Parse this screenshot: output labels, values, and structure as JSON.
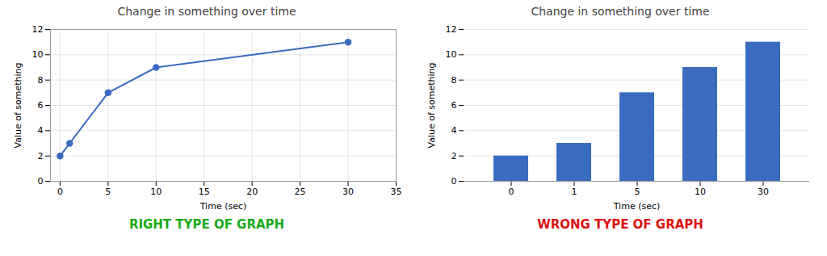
{
  "chart_data": [
    {
      "type": "line",
      "title": "Change in something over time",
      "xlabel": "Time (sec)",
      "ylabel": "Value of something",
      "x": [
        0,
        1,
        5,
        10,
        30
      ],
      "values": [
        2,
        3,
        7,
        9,
        11
      ],
      "color": "#3a6bbf",
      "marker": "circle",
      "xlim": [
        -1,
        35
      ],
      "xticks": [
        0,
        5,
        10,
        15,
        20,
        25,
        30,
        35
      ],
      "ylim": [
        0,
        12
      ],
      "yticks": [
        0,
        2,
        4,
        6,
        8,
        10,
        12
      ],
      "grid": true,
      "annotations": [
        {
          "text": "RIGHT TYPE OF GRAPH",
          "color": "#1aaa1a"
        }
      ]
    },
    {
      "type": "bar",
      "title": "Change in something over time",
      "xlabel": "Time (sec)",
      "ylabel": "Value of something",
      "categories": [
        "0",
        "1",
        "5",
        "10",
        "30"
      ],
      "values": [
        2,
        3,
        7,
        9,
        11
      ],
      "color": "#3a6bbf",
      "ylim": [
        0,
        12
      ],
      "yticks": [
        0,
        2,
        4,
        6,
        8,
        10,
        12
      ],
      "grid": "y",
      "annotations": [
        {
          "text": "WRONG TYPE OF GRAPH",
          "color": "#dd1111"
        }
      ]
    }
  ]
}
